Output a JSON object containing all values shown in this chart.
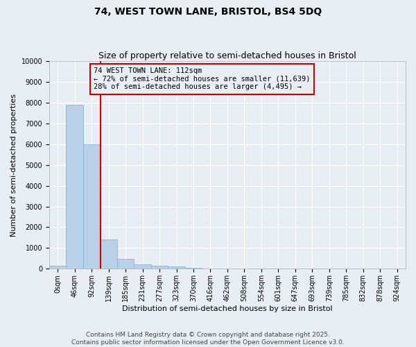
{
  "title": "74, WEST TOWN LANE, BRISTOL, BS4 5DQ",
  "subtitle": "Size of property relative to semi-detached houses in Bristol",
  "xlabel": "Distribution of semi-detached houses by size in Bristol",
  "ylabel": "Number of semi-detached properties",
  "footer_line1": "Contains HM Land Registry data © Crown copyright and database right 2025.",
  "footer_line2": "Contains public sector information licensed under the Open Government Licence v3.0.",
  "bin_labels": [
    "0sqm",
    "46sqm",
    "92sqm",
    "139sqm",
    "185sqm",
    "231sqm",
    "277sqm",
    "323sqm",
    "370sqm",
    "416sqm",
    "462sqm",
    "508sqm",
    "554sqm",
    "601sqm",
    "647sqm",
    "693sqm",
    "739sqm",
    "785sqm",
    "832sqm",
    "878sqm",
    "924sqm"
  ],
  "bar_values": [
    150,
    7900,
    6000,
    1400,
    480,
    220,
    130,
    100,
    50,
    10,
    5,
    2,
    1,
    1,
    0,
    0,
    0,
    0,
    0,
    0,
    0
  ],
  "bar_color": "#b8d0e8",
  "bar_edge_color": "#7aafd4",
  "vline_x": 2.53,
  "vline_color": "#cc0000",
  "annotation_line1": "74 WEST TOWN LANE: 112sqm",
  "annotation_line2": "← 72% of semi-detached houses are smaller (11,639)",
  "annotation_line3": "28% of semi-detached houses are larger (4,495) →",
  "annotation_box_color": "#cc0000",
  "ylim": [
    0,
    10000
  ],
  "yticks": [
    0,
    1000,
    2000,
    3000,
    4000,
    5000,
    6000,
    7000,
    8000,
    9000,
    10000
  ],
  "background_color": "#e8eef4",
  "plot_bg_color": "#e8eef4",
  "grid_color": "#ffffff",
  "title_fontsize": 10,
  "subtitle_fontsize": 9,
  "axis_label_fontsize": 8,
  "tick_fontsize": 7,
  "annotation_fontsize": 7.5,
  "footer_fontsize": 6.5
}
